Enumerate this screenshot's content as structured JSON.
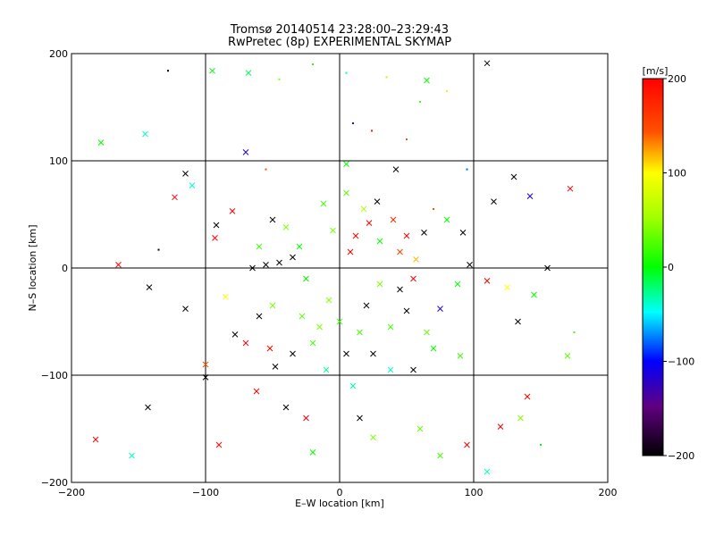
{
  "chart_data": {
    "type": "scatter",
    "title": "Tromsø 20140514 23:28:00–23:29:43",
    "subtitle": "RwPretec (8p) EXPERIMENTAL SKYMAP",
    "xlabel": "E–W location [km]",
    "ylabel": "N–S location [km]",
    "xlim": [
      -200,
      200
    ],
    "ylim": [
      -200,
      200
    ],
    "xticks": [
      -200,
      -100,
      0,
      100,
      200
    ],
    "yticks": [
      -200,
      -100,
      0,
      100,
      200
    ],
    "xtick_labels": [
      "−200",
      "−100",
      "0",
      "100",
      "200"
    ],
    "ytick_labels": [
      "−200",
      "−100",
      "0",
      "100",
      "200"
    ],
    "grid": true,
    "colorbar": {
      "label": "[m/s]",
      "range": [
        -200,
        200
      ],
      "ticks": [
        200,
        100,
        0,
        -100,
        -200
      ],
      "tick_labels": [
        "200",
        "100",
        "0",
        "−100",
        "−200"
      ],
      "colormap": "black-purple-blue-cyan-green-yellow-orange-red"
    },
    "markers": "small dots and x-crosses colored by velocity",
    "points": [
      [
        110,
        191,
        -200,
        "x"
      ],
      [
        -128,
        184,
        -200,
        "dot"
      ],
      [
        -95,
        184,
        0,
        "x"
      ],
      [
        -68,
        182,
        -20,
        "x"
      ],
      [
        -45,
        176,
        40,
        "dot"
      ],
      [
        -20,
        190,
        10,
        "dot"
      ],
      [
        5,
        182,
        -30,
        "dot"
      ],
      [
        35,
        178,
        60,
        "dot"
      ],
      [
        65,
        175,
        0,
        "x"
      ],
      [
        80,
        165,
        80,
        "dot"
      ],
      [
        -178,
        117,
        0,
        "x"
      ],
      [
        -145,
        125,
        -40,
        "x"
      ],
      [
        -115,
        88,
        -200,
        "x"
      ],
      [
        -110,
        77,
        -40,
        "x"
      ],
      [
        -123,
        66,
        200,
        "x"
      ],
      [
        -70,
        108,
        -120,
        "x"
      ],
      [
        10,
        135,
        -130,
        "dot"
      ],
      [
        24,
        128,
        190,
        "dot"
      ],
      [
        50,
        120,
        150,
        "dot"
      ],
      [
        60,
        155,
        20,
        "dot"
      ],
      [
        42,
        92,
        -200,
        "x"
      ],
      [
        -55,
        92,
        150,
        "dot"
      ],
      [
        5,
        97,
        0,
        "x"
      ],
      [
        95,
        92,
        -80,
        "dot"
      ],
      [
        115,
        62,
        -200,
        "x"
      ],
      [
        130,
        85,
        -200,
        "x"
      ],
      [
        142,
        67,
        -110,
        "x"
      ],
      [
        172,
        74,
        200,
        "x"
      ],
      [
        -92,
        40,
        -200,
        "x"
      ],
      [
        -80,
        53,
        200,
        "x"
      ],
      [
        -93,
        28,
        200,
        "x"
      ],
      [
        -165,
        3,
        200,
        "x"
      ],
      [
        -135,
        17,
        -200,
        "dot"
      ],
      [
        -142,
        -18,
        -200,
        "x"
      ],
      [
        -115,
        -38,
        -200,
        "x"
      ],
      [
        -85,
        -27,
        100,
        "x"
      ],
      [
        -70,
        -70,
        200,
        "x"
      ],
      [
        -78,
        -62,
        -200,
        "x"
      ],
      [
        -100,
        -90,
        150,
        "x"
      ],
      [
        -100,
        -102,
        -200,
        "x"
      ],
      [
        -143,
        -130,
        -200,
        "x"
      ],
      [
        -182,
        -160,
        200,
        "x"
      ],
      [
        -155,
        -175,
        -40,
        "x"
      ],
      [
        -90,
        -165,
        200,
        "x"
      ],
      [
        -62,
        -115,
        200,
        "x"
      ],
      [
        -40,
        -130,
        -200,
        "x"
      ],
      [
        -25,
        -140,
        200,
        "x"
      ],
      [
        -20,
        -172,
        0,
        "x"
      ],
      [
        15,
        -140,
        -200,
        "x"
      ],
      [
        25,
        -158,
        40,
        "x"
      ],
      [
        60,
        -150,
        30,
        "x"
      ],
      [
        75,
        -175,
        20,
        "x"
      ],
      [
        95,
        -165,
        200,
        "x"
      ],
      [
        120,
        -148,
        200,
        "x"
      ],
      [
        140,
        -120,
        200,
        "x"
      ],
      [
        135,
        -140,
        40,
        "x"
      ],
      [
        110,
        -190,
        -40,
        "x"
      ],
      [
        150,
        -165,
        0,
        "dot"
      ],
      [
        170,
        -82,
        30,
        "x"
      ],
      [
        175,
        -60,
        20,
        "dot"
      ],
      [
        155,
        0,
        -200,
        "x"
      ],
      [
        145,
        -25,
        0,
        "x"
      ],
      [
        125,
        -18,
        100,
        "x"
      ],
      [
        133,
        -50,
        -200,
        "x"
      ],
      [
        110,
        -12,
        200,
        "x"
      ],
      [
        97,
        3,
        -200,
        "x"
      ],
      [
        88,
        -15,
        0,
        "x"
      ],
      [
        75,
        -38,
        -120,
        "x"
      ],
      [
        65,
        -60,
        30,
        "x"
      ],
      [
        70,
        -75,
        0,
        "x"
      ],
      [
        55,
        -95,
        -200,
        "x"
      ],
      [
        90,
        -82,
        20,
        "x"
      ],
      [
        92,
        33,
        -200,
        "x"
      ],
      [
        80,
        45,
        0,
        "x"
      ],
      [
        63,
        33,
        -200,
        "x"
      ],
      [
        70,
        55,
        150,
        "dot"
      ],
      [
        -65,
        0,
        -200,
        "x"
      ],
      [
        -55,
        3,
        -200,
        "x"
      ],
      [
        -45,
        5,
        -200,
        "x"
      ],
      [
        -35,
        10,
        -200,
        "x"
      ],
      [
        -30,
        20,
        0,
        "x"
      ],
      [
        -60,
        20,
        20,
        "x"
      ],
      [
        -50,
        45,
        -200,
        "x"
      ],
      [
        -40,
        38,
        40,
        "x"
      ],
      [
        -25,
        -10,
        0,
        "x"
      ],
      [
        -50,
        -35,
        40,
        "x"
      ],
      [
        -60,
        -45,
        -200,
        "x"
      ],
      [
        -35,
        -80,
        -200,
        "x"
      ],
      [
        -20,
        -70,
        20,
        "x"
      ],
      [
        -10,
        -95,
        -30,
        "x"
      ],
      [
        5,
        -80,
        -200,
        "x"
      ],
      [
        15,
        -60,
        20,
        "x"
      ],
      [
        20,
        -35,
        -200,
        "x"
      ],
      [
        30,
        -15,
        40,
        "x"
      ],
      [
        45,
        -20,
        -200,
        "x"
      ],
      [
        50,
        -40,
        -200,
        "x"
      ],
      [
        38,
        -55,
        20,
        "x"
      ],
      [
        -8,
        -30,
        40,
        "x"
      ],
      [
        8,
        15,
        200,
        "x"
      ],
      [
        12,
        30,
        200,
        "x"
      ],
      [
        22,
        42,
        200,
        "x"
      ],
      [
        30,
        25,
        0,
        "x"
      ],
      [
        -12,
        60,
        20,
        "x"
      ],
      [
        -5,
        35,
        40,
        "x"
      ],
      [
        5,
        70,
        30,
        "x"
      ],
      [
        18,
        55,
        60,
        "x"
      ],
      [
        28,
        62,
        -200,
        "x"
      ],
      [
        40,
        45,
        180,
        "x"
      ],
      [
        50,
        30,
        200,
        "x"
      ],
      [
        45,
        15,
        160,
        "x"
      ],
      [
        57,
        8,
        120,
        "x"
      ],
      [
        55,
        -10,
        200,
        "x"
      ],
      [
        -15,
        -55,
        40,
        "x"
      ],
      [
        -28,
        -45,
        30,
        "x"
      ],
      [
        0,
        -50,
        20,
        "x"
      ],
      [
        10,
        -110,
        -30,
        "x"
      ],
      [
        -48,
        -92,
        -200,
        "x"
      ],
      [
        -52,
        -75,
        200,
        "x"
      ],
      [
        25,
        -80,
        -200,
        "x"
      ],
      [
        38,
        -95,
        -40,
        "x"
      ]
    ]
  }
}
